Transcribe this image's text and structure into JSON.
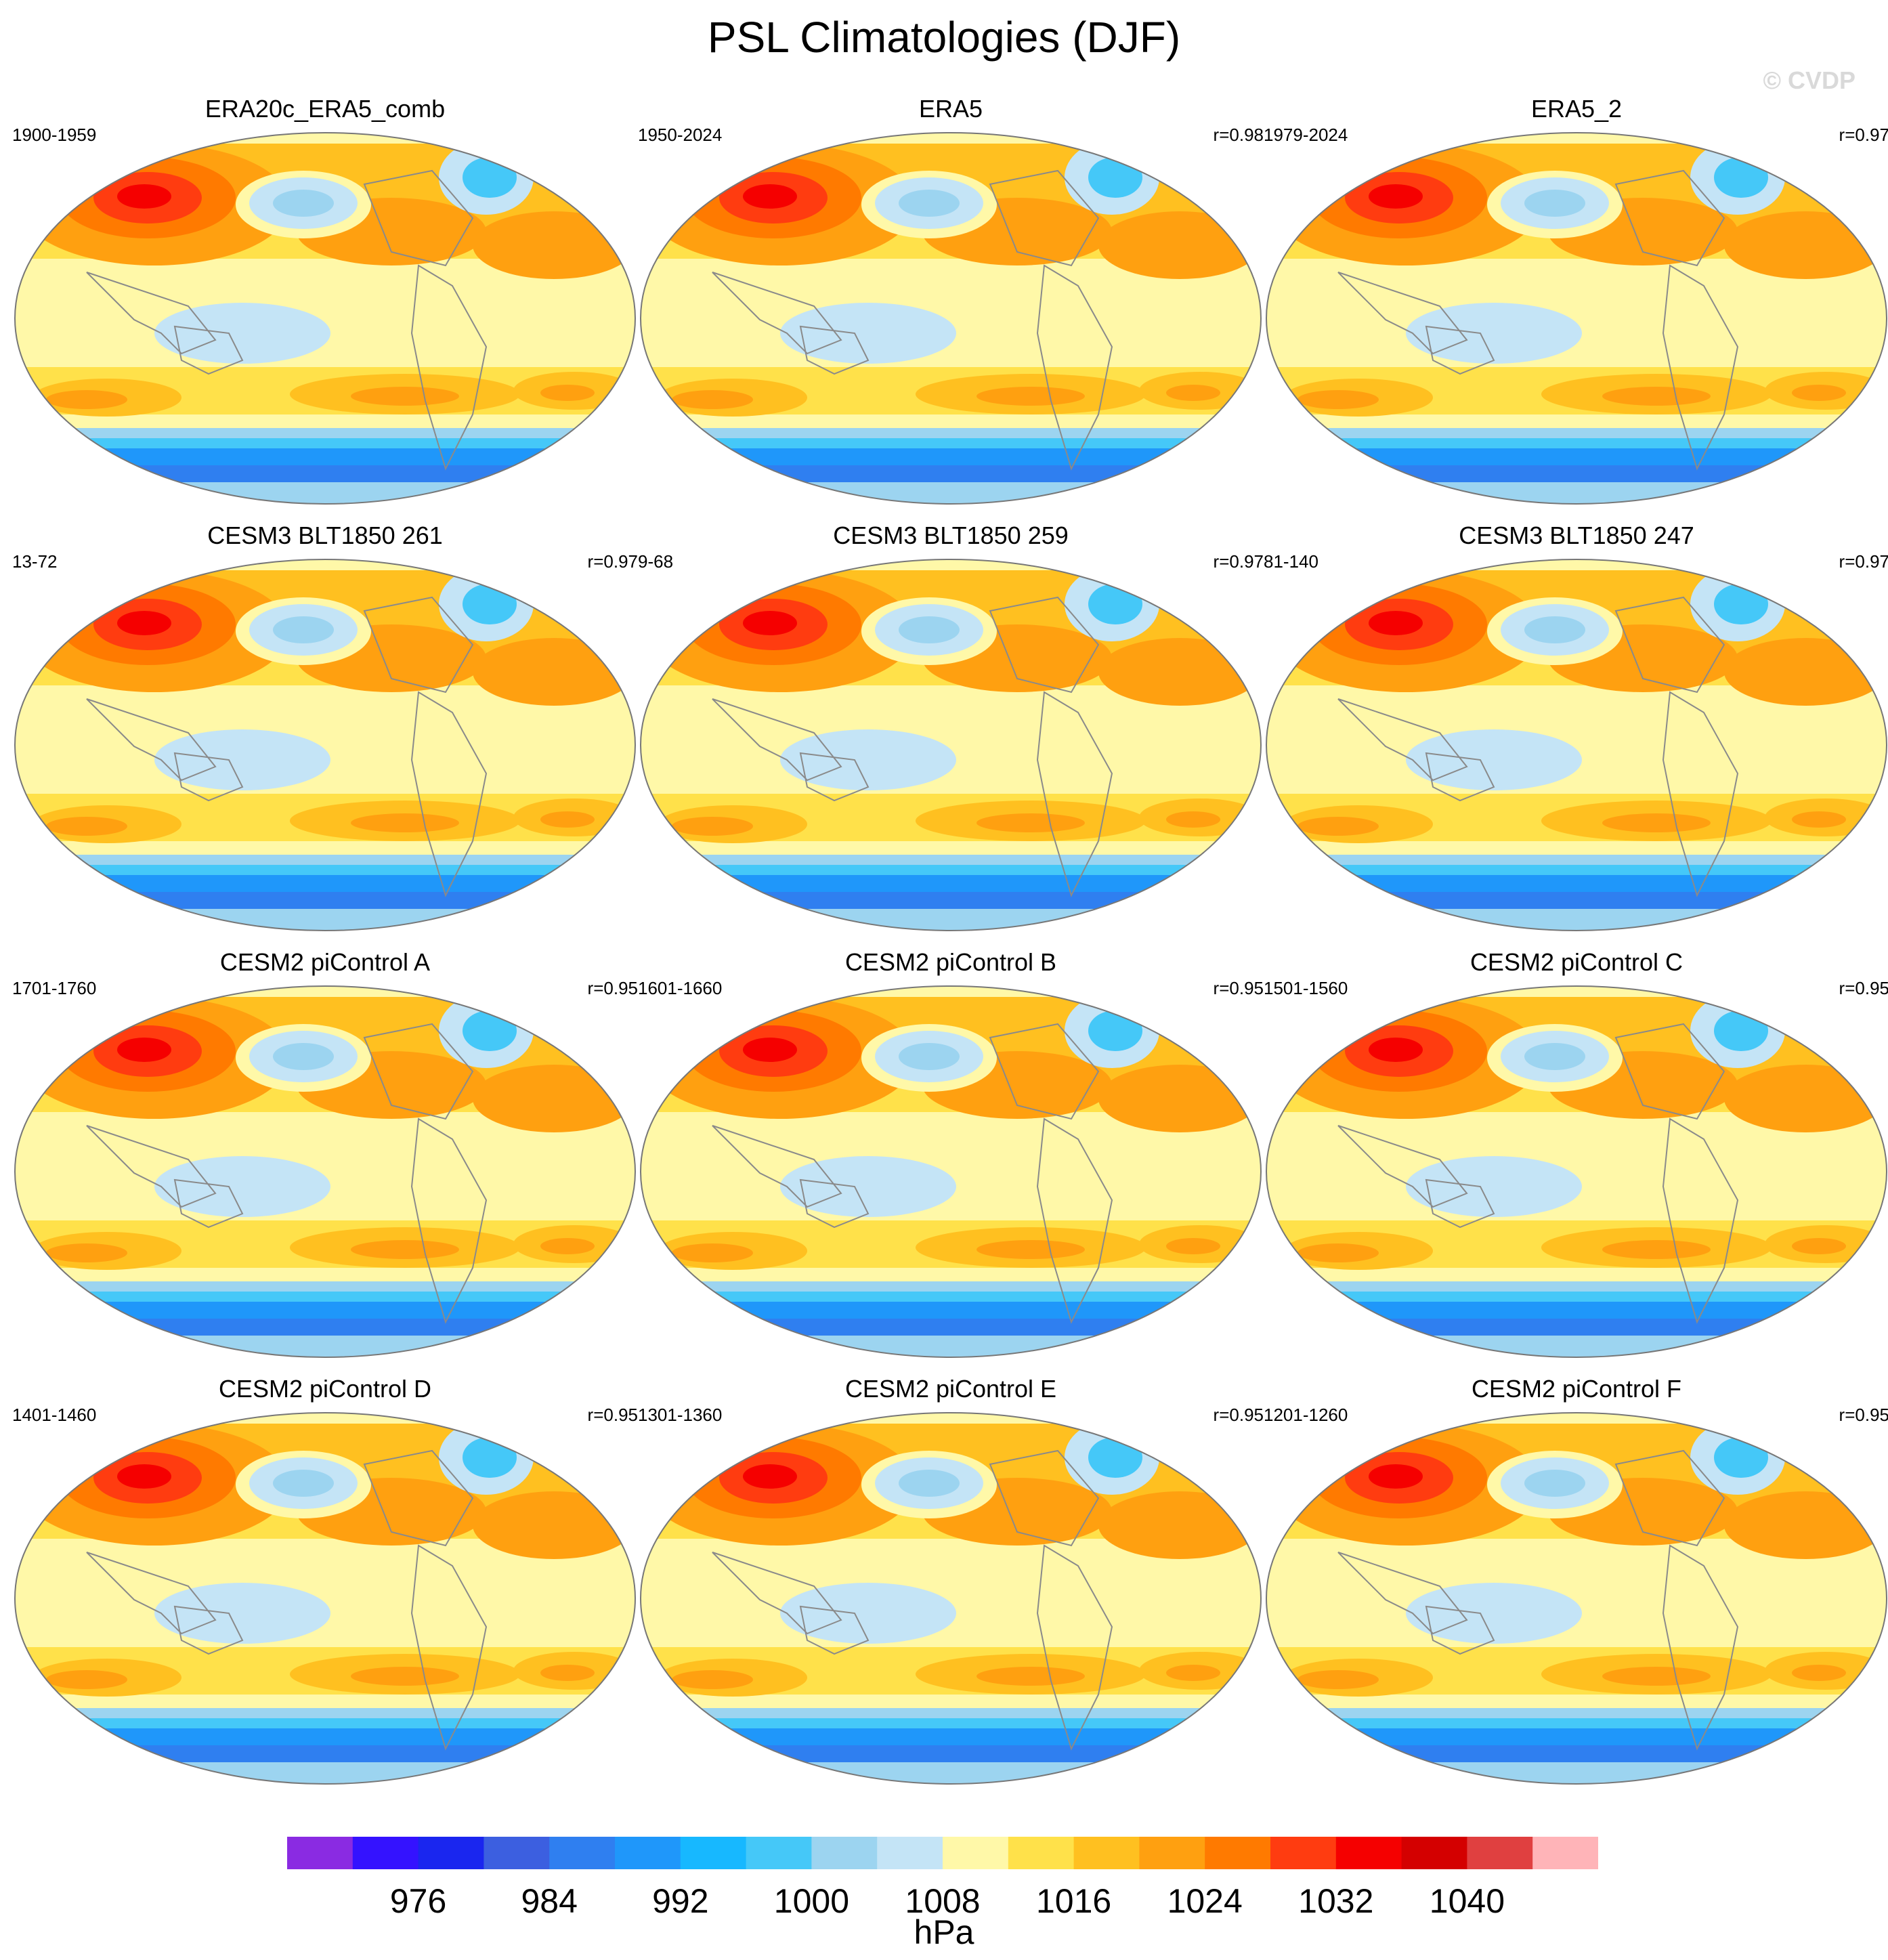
{
  "title": "PSL Climatologies (DJF)",
  "watermark": "© CVDP",
  "panels": [
    {
      "title": "ERA20c_ERA5_comb",
      "period": "1900-1959",
      "r": ""
    },
    {
      "title": "ERA5",
      "period": "1950-2024",
      "r": "r=0.98"
    },
    {
      "title": "ERA5_2",
      "period": "1979-2024",
      "r": "r=0.97"
    },
    {
      "title": "CESM3 BLT1850 261",
      "period": "13-72",
      "r": "r=0.97"
    },
    {
      "title": "CESM3 BLT1850 259",
      "period": "9-68",
      "r": "r=0.97"
    },
    {
      "title": "CESM3 BLT1850 247",
      "period": "81-140",
      "r": "r=0.97"
    },
    {
      "title": "CESM2 piControl A",
      "period": "1701-1760",
      "r": "r=0.95"
    },
    {
      "title": "CESM2 piControl B",
      "period": "1601-1660",
      "r": "r=0.95"
    },
    {
      "title": "CESM2 piControl C",
      "period": "1501-1560",
      "r": "r=0.95"
    },
    {
      "title": "CESM2 piControl D",
      "period": "1401-1460",
      "r": "r=0.95"
    },
    {
      "title": "CESM2 piControl E",
      "period": "1301-1360",
      "r": "r=0.95"
    },
    {
      "title": "CESM2 piControl F",
      "period": "1201-1260",
      "r": "r=0.95"
    }
  ],
  "colorbar": {
    "units": "hPa",
    "labels": [
      "976",
      "984",
      "992",
      "1000",
      "1008",
      "1016",
      "1024",
      "1032",
      "1040"
    ],
    "colors": [
      "#8a2be2",
      "#3412ff",
      "#1a26ef",
      "#3c5fe0",
      "#2f7ff0",
      "#1f97fa",
      "#17b8ff",
      "#45c8f8",
      "#9cd4f0",
      "#c4e4f6",
      "#fff8a8",
      "#ffe14a",
      "#ffc020",
      "#ffa010",
      "#ff7a00",
      "#ff3c10",
      "#f50000",
      "#d40000",
      "#e04040",
      "#ffb4b8"
    ]
  },
  "map_colors": {
    "outline": "#777777",
    "land": "#8a8a8a"
  }
}
